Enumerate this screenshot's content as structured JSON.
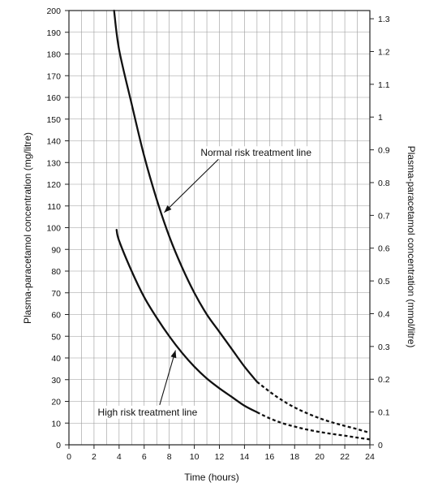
{
  "chart_data": {
    "type": "line",
    "xlabel": "Time (hours)",
    "ylabel": "Plasma-paracetamol concentration (mg/litre)",
    "ylabel_right": "Plasma-paracetamol concentration (mmol/litre)",
    "xlim": [
      0,
      24
    ],
    "ylim": [
      0,
      200
    ],
    "ylim_right": [
      0,
      1.325
    ],
    "x_ticks": [
      "0",
      "2",
      "4",
      "6",
      "8",
      "10",
      "12",
      "14",
      "16",
      "18",
      "20",
      "22",
      "24"
    ],
    "y_ticks": [
      "0",
      "10",
      "20",
      "30",
      "40",
      "50",
      "60",
      "70",
      "80",
      "90",
      "100",
      "110",
      "120",
      "130",
      "140",
      "150",
      "160",
      "170",
      "180",
      "190",
      "200"
    ],
    "y_right_ticks": [
      "0",
      "0.1",
      "0.2",
      "0.3",
      "0.4",
      "0.5",
      "0.6",
      "0.7",
      "0.8",
      "0.9",
      "1",
      "1.1",
      "1.2",
      "1.3"
    ],
    "grid": true,
    "series": [
      {
        "x": [
          3.6,
          4,
          5,
          6,
          7,
          8,
          9,
          10,
          11,
          12,
          13,
          14,
          15
        ],
        "values": [
          200,
          182,
          157,
          133,
          113,
          96,
          82,
          70,
          60,
          52,
          44,
          36,
          29
        ],
        "dashed_x": [
          15,
          16,
          17,
          18,
          19,
          20,
          21,
          22,
          23,
          24
        ],
        "dashed_values": [
          29,
          24.5,
          20.5,
          17.2,
          14.5,
          12.2,
          10.3,
          8.7,
          7.2,
          5.5
        ],
        "color": "#111111"
      },
      {
        "x": [
          3.8,
          4,
          5,
          6,
          7,
          8,
          9,
          10,
          11,
          12,
          13,
          14,
          15
        ],
        "values": [
          99,
          94,
          80,
          68,
          58.5,
          50,
          42.5,
          36,
          30.5,
          26,
          22,
          18,
          15
        ],
        "dashed_x": [
          15,
          16,
          17,
          18,
          19,
          20,
          21,
          22,
          23,
          24
        ],
        "dashed_values": [
          15,
          12.2,
          10,
          8.4,
          7,
          5.9,
          5,
          4.2,
          3.3,
          2.5
        ],
        "color": "#111111"
      }
    ],
    "annotations": [
      {
        "text": "Normal risk treatment line",
        "text_at": [
          10.5,
          134.5
        ],
        "arrow_to": [
          7.6,
          107
        ]
      },
      {
        "text": "High risk treatment line",
        "text_at": [
          2.3,
          15
        ],
        "arrow_to": [
          8.5,
          43.5
        ]
      }
    ]
  }
}
